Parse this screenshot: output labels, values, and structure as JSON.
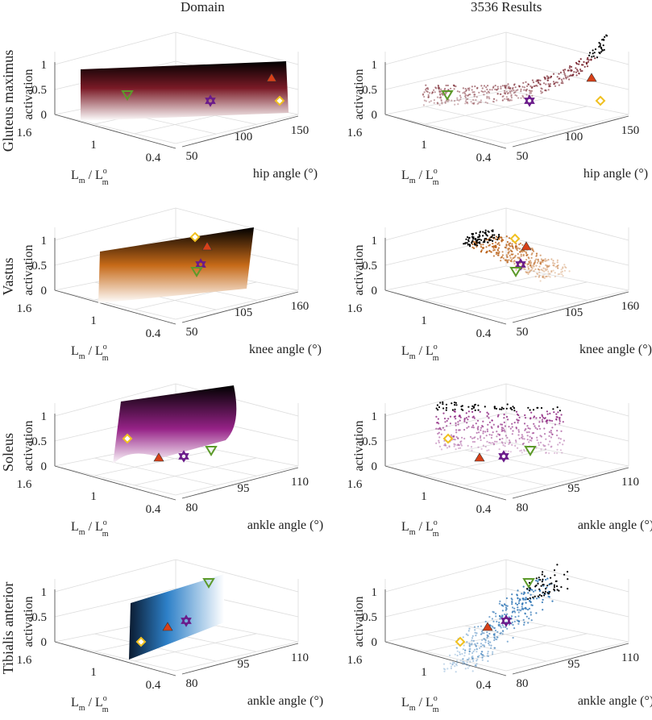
{
  "column_titles": [
    "Domain",
    "3536 Results"
  ],
  "colors": {
    "gluteus": "#6b0f1a",
    "vastus": "#b85c10",
    "soleus": "#8a1e7c",
    "tibialis": "#1f6bb0",
    "marker_green": "#5c9a2a",
    "marker_red": "#d84018",
    "marker_purple": "#6a1a8a",
    "marker_yellow": "#f0c020"
  },
  "axis_labels": {
    "z": "activation",
    "lm": "L",
    "lm_sub": "m",
    "lmo": "L",
    "lmo_sup": "o",
    "lmo_sub": "m",
    "slash": "/"
  },
  "chart_data": [
    {
      "type": "surface",
      "muscle": "Gluteus maximus",
      "panel": "Domain",
      "xlabel": "hip angle (°)",
      "ylabel": "Lm / Lmo",
      "zlabel": "activation",
      "xticks": [
        "50",
        "100",
        "150"
      ],
      "yticks": [
        "0.4",
        "1",
        "1.6"
      ],
      "zticks": [
        "0",
        "0.5",
        "1"
      ],
      "xlim": [
        40,
        160
      ],
      "ylim": [
        0.3,
        1.7
      ],
      "zlim": [
        0,
        1
      ],
      "markers": [
        {
          "shape": "triangle-down",
          "color": "green",
          "x": 100,
          "y": 1.6,
          "z": 0.55
        },
        {
          "shape": "triangle-up",
          "color": "red",
          "x": 150,
          "y": 1.0,
          "z": 0.75
        },
        {
          "shape": "star",
          "color": "purple",
          "x": 110,
          "y": 0.8,
          "z": 0.25
        },
        {
          "shape": "diamond",
          "color": "yellow",
          "x": 150,
          "y": 0.6,
          "z": 0.2
        }
      ]
    },
    {
      "type": "scatter3d",
      "muscle": "Gluteus maximus",
      "panel": "3536 Results",
      "xlabel": "hip angle (°)",
      "ylabel": "Lm / Lmo",
      "zlabel": "activation",
      "xticks": [
        "50",
        "100",
        "150"
      ],
      "yticks": [
        "0.4",
        "1",
        "1.6"
      ],
      "zticks": [
        "0",
        "0.5",
        "1"
      ],
      "xlim": [
        40,
        160
      ],
      "ylim": [
        0.3,
        1.7
      ],
      "zlim": [
        0,
        1
      ],
      "n_points": 3536,
      "markers": [
        {
          "shape": "triangle-down",
          "color": "green",
          "x": 100,
          "y": 1.6,
          "z": 0.55
        },
        {
          "shape": "triangle-up",
          "color": "red",
          "x": 150,
          "y": 1.0,
          "z": 0.75
        },
        {
          "shape": "star",
          "color": "purple",
          "x": 110,
          "y": 0.8,
          "z": 0.25
        },
        {
          "shape": "diamond",
          "color": "yellow",
          "x": 150,
          "y": 0.6,
          "z": 0.2
        }
      ]
    },
    {
      "type": "surface",
      "muscle": "Vastus",
      "panel": "Domain",
      "xlabel": "knee angle (°)",
      "ylabel": "Lm / Lmo",
      "zlabel": "activation",
      "xticks": [
        "50",
        "105",
        "160"
      ],
      "yticks": [
        "0.4",
        "1",
        "1.6"
      ],
      "zticks": [
        "0",
        "0.5",
        "1"
      ],
      "xlim": [
        40,
        170
      ],
      "ylim": [
        0.3,
        1.7
      ],
      "zlim": [
        0,
        1
      ],
      "markers": [
        {
          "shape": "diamond",
          "color": "yellow",
          "x": 120,
          "y": 1.2,
          "z": 1.0
        },
        {
          "shape": "triangle-up",
          "color": "red",
          "x": 125,
          "y": 1.1,
          "z": 0.85
        },
        {
          "shape": "star",
          "color": "purple",
          "x": 115,
          "y": 1.1,
          "z": 0.5
        },
        {
          "shape": "triangle-down",
          "color": "green",
          "x": 110,
          "y": 1.2,
          "z": 0.4
        }
      ]
    },
    {
      "type": "scatter3d",
      "muscle": "Vastus",
      "panel": "3536 Results",
      "xlabel": "knee angle (°)",
      "ylabel": "Lm / Lmo",
      "zlabel": "activation",
      "xticks": [
        "50",
        "105",
        "160"
      ],
      "yticks": [
        "0.4",
        "1",
        "1.6"
      ],
      "zticks": [
        "0",
        "0.5",
        "1"
      ],
      "xlim": [
        40,
        170
      ],
      "ylim": [
        0.3,
        1.7
      ],
      "zlim": [
        0,
        1
      ],
      "n_points": 3536,
      "markers": [
        {
          "shape": "diamond",
          "color": "yellow",
          "x": 120,
          "y": 1.2,
          "z": 1.0
        },
        {
          "shape": "triangle-up",
          "color": "red",
          "x": 125,
          "y": 1.1,
          "z": 0.85
        },
        {
          "shape": "star",
          "color": "purple",
          "x": 115,
          "y": 1.1,
          "z": 0.5
        },
        {
          "shape": "triangle-down",
          "color": "green",
          "x": 110,
          "y": 1.2,
          "z": 0.4
        }
      ]
    },
    {
      "type": "surface",
      "muscle": "Soleus",
      "panel": "Domain",
      "xlabel": "ankle angle (°)",
      "ylabel": "Lm / Lmo",
      "zlabel": "activation",
      "xticks": [
        "80",
        "95",
        "110"
      ],
      "yticks": [
        "0.4",
        "1",
        "1.6"
      ],
      "zticks": [
        "0",
        "0.5",
        "1"
      ],
      "xlim": [
        75,
        115
      ],
      "ylim": [
        0.3,
        1.7
      ],
      "zlim": [
        0,
        1
      ],
      "markers": [
        {
          "shape": "diamond",
          "color": "yellow",
          "x": 90,
          "y": 1.2,
          "z": 0.55
        },
        {
          "shape": "triangle-up",
          "color": "red",
          "x": 95,
          "y": 0.9,
          "z": 0.15
        },
        {
          "shape": "star",
          "color": "purple",
          "x": 100,
          "y": 0.8,
          "z": 0.2
        },
        {
          "shape": "triangle-down",
          "color": "green",
          "x": 108,
          "y": 0.7,
          "z": 0.3
        }
      ]
    },
    {
      "type": "scatter3d",
      "muscle": "Soleus",
      "panel": "3536 Results",
      "xlabel": "ankle angle (°)",
      "ylabel": "Lm / Lmo",
      "zlabel": "activation",
      "xticks": [
        "80",
        "95",
        "110"
      ],
      "yticks": [
        "0.4",
        "1",
        "1.6"
      ],
      "zticks": [
        "0",
        "0.5",
        "1"
      ],
      "xlim": [
        75,
        115
      ],
      "ylim": [
        0.3,
        1.7
      ],
      "zlim": [
        0,
        1
      ],
      "n_points": 3536,
      "markers": [
        {
          "shape": "diamond",
          "color": "yellow",
          "x": 90,
          "y": 1.2,
          "z": 0.55
        },
        {
          "shape": "triangle-up",
          "color": "red",
          "x": 95,
          "y": 0.9,
          "z": 0.15
        },
        {
          "shape": "star",
          "color": "purple",
          "x": 100,
          "y": 0.8,
          "z": 0.2
        },
        {
          "shape": "triangle-down",
          "color": "green",
          "x": 108,
          "y": 0.7,
          "z": 0.3
        }
      ]
    },
    {
      "type": "surface",
      "muscle": "Tibialis anterior",
      "panel": "Domain",
      "xlabel": "ankle angle (°)",
      "ylabel": "Lm / Lmo",
      "zlabel": "activation",
      "xticks": [
        "80",
        "95",
        "110"
      ],
      "yticks": [
        "0.4",
        "1",
        "1.6"
      ],
      "zticks": [
        "0",
        "0.5",
        "1"
      ],
      "xlim": [
        75,
        115
      ],
      "ylim": [
        0.3,
        1.7
      ],
      "zlim": [
        0,
        1
      ],
      "markers": [
        {
          "shape": "triangle-down",
          "color": "green",
          "x": 108,
          "y": 1.0,
          "z": 1.2
        },
        {
          "shape": "star",
          "color": "purple",
          "x": 100,
          "y": 0.9,
          "z": 0.45
        },
        {
          "shape": "triangle-up",
          "color": "red",
          "x": 95,
          "y": 1.0,
          "z": 0.35
        },
        {
          "shape": "diamond",
          "color": "yellow",
          "x": 88,
          "y": 1.1,
          "z": 0.05
        }
      ]
    },
    {
      "type": "scatter3d",
      "muscle": "Tibialis anterior",
      "panel": "3536 Results",
      "xlabel": "ankle angle (°)",
      "ylabel": "Lm / Lmo",
      "zlabel": "activation",
      "xticks": [
        "80",
        "95",
        "110"
      ],
      "yticks": [
        "0.4",
        "1",
        "1.6"
      ],
      "zticks": [
        "0",
        "0.5",
        "1"
      ],
      "xlim": [
        75,
        115
      ],
      "ylim": [
        0.3,
        1.7
      ],
      "zlim": [
        0,
        1
      ],
      "n_points": 3536,
      "markers": [
        {
          "shape": "triangle-down",
          "color": "green",
          "x": 108,
          "y": 1.0,
          "z": 1.2
        },
        {
          "shape": "star",
          "color": "purple",
          "x": 100,
          "y": 0.9,
          "z": 0.45
        },
        {
          "shape": "triangle-up",
          "color": "red",
          "x": 95,
          "y": 1.0,
          "z": 0.35
        },
        {
          "shape": "diamond",
          "color": "yellow",
          "x": 88,
          "y": 1.1,
          "z": 0.05
        }
      ]
    }
  ]
}
